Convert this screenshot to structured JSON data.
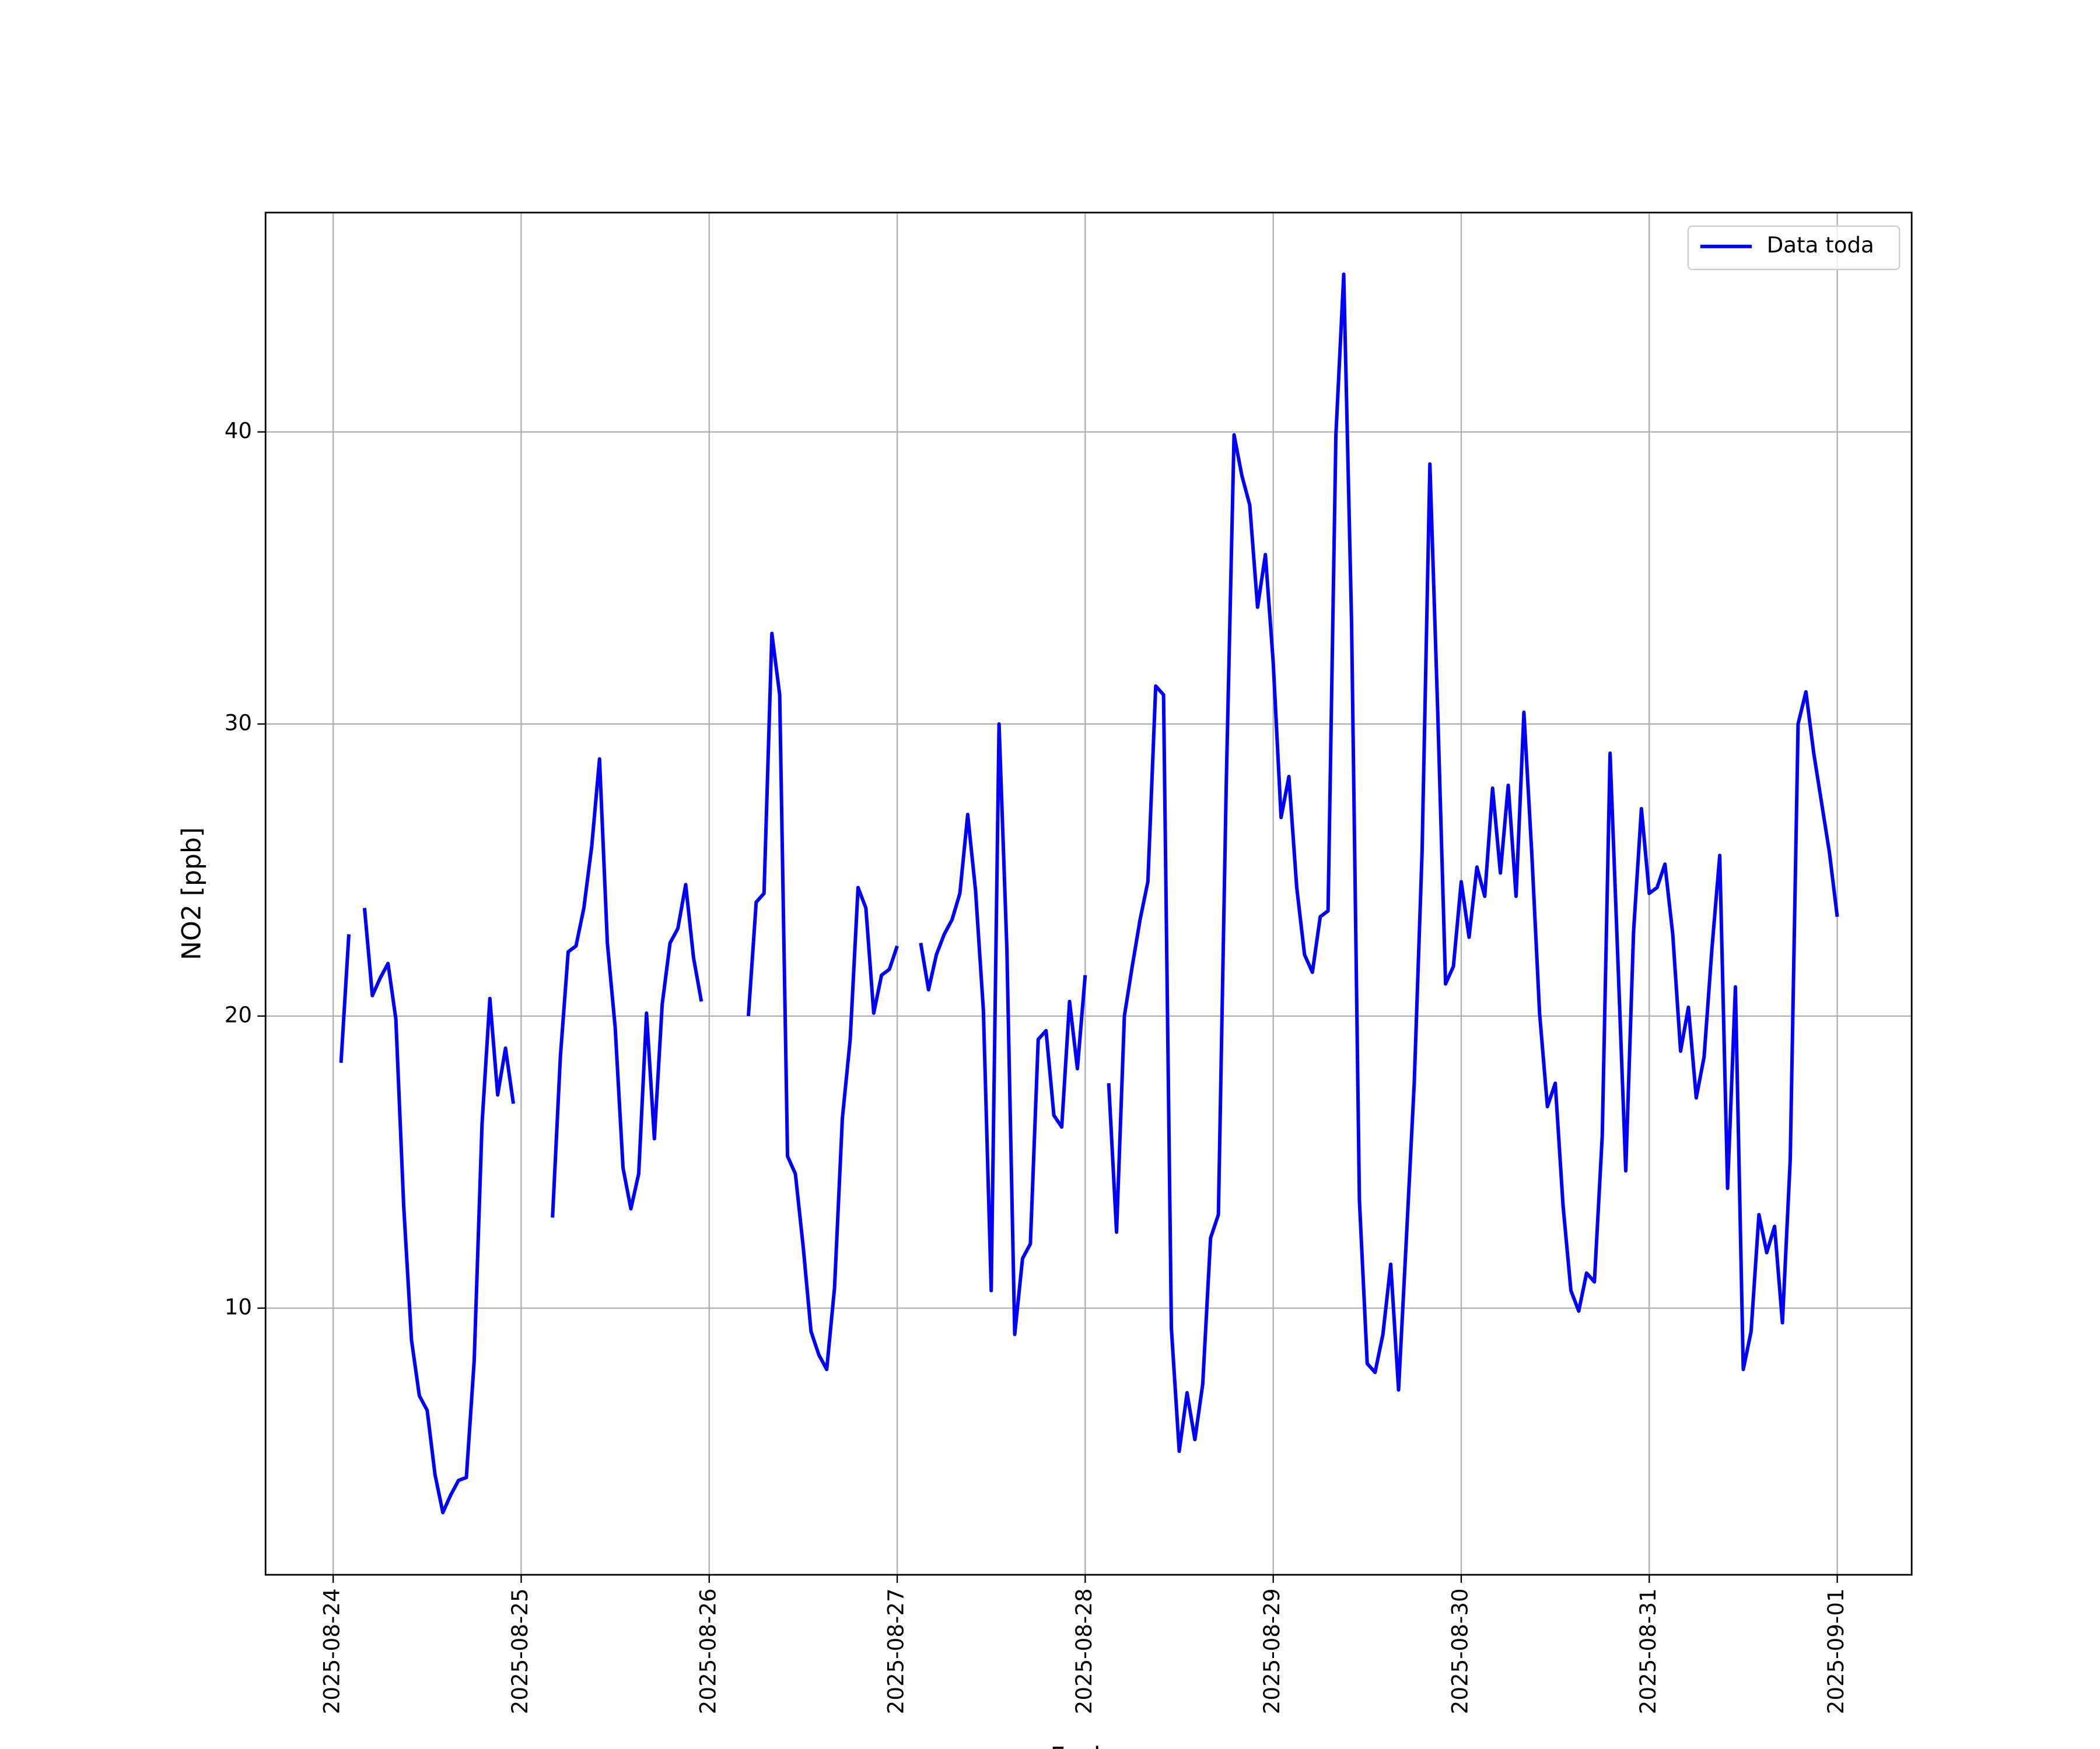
{
  "chart_data": {
    "type": "line",
    "xlabel": "Fecha",
    "ylabel": "NO2 [ppb]",
    "legend": "upper right",
    "grid": true,
    "xlim": [
      "2025-08-23 15:22",
      "2025-09-01 09:30"
    ],
    "xticks": [
      "2025-08-24",
      "2025-08-25",
      "2025-08-26",
      "2025-08-27",
      "2025-08-28",
      "2025-08-29",
      "2025-08-30",
      "2025-08-31",
      "2025-09-01"
    ],
    "ylim": [
      0.87,
      47.51
    ],
    "yticks": [
      10,
      20,
      30,
      40
    ],
    "x": [
      "2025-08-24 01:00",
      "2025-08-24 02:00",
      "2025-08-24 03:00",
      "2025-08-24 04:00",
      "2025-08-24 05:00",
      "2025-08-24 06:00",
      "2025-08-24 07:00",
      "2025-08-24 08:00",
      "2025-08-24 09:00",
      "2025-08-24 10:00",
      "2025-08-24 11:00",
      "2025-08-24 12:00",
      "2025-08-24 13:00",
      "2025-08-24 14:00",
      "2025-08-24 15:00",
      "2025-08-24 16:00",
      "2025-08-24 17:00",
      "2025-08-24 18:00",
      "2025-08-24 19:00",
      "2025-08-24 20:00",
      "2025-08-24 21:00",
      "2025-08-24 22:00",
      "2025-08-24 23:00",
      "2025-08-25 02:00",
      "2025-08-25 04:00",
      "2025-08-25 05:00",
      "2025-08-25 06:00",
      "2025-08-25 07:00",
      "2025-08-25 08:00",
      "2025-08-25 09:00",
      "2025-08-25 10:00",
      "2025-08-25 11:00",
      "2025-08-25 12:00",
      "2025-08-25 13:00",
      "2025-08-25 14:00",
      "2025-08-25 15:00",
      "2025-08-25 16:00",
      "2025-08-25 17:00",
      "2025-08-25 18:00",
      "2025-08-25 19:00",
      "2025-08-25 20:00",
      "2025-08-25 21:00",
      "2025-08-25 22:00",
      "2025-08-25 23:00",
      "2025-08-26 02:00",
      "2025-08-26 05:00",
      "2025-08-26 06:00",
      "2025-08-26 07:00",
      "2025-08-26 08:00",
      "2025-08-26 09:00",
      "2025-08-26 10:00",
      "2025-08-26 11:00",
      "2025-08-26 12:00",
      "2025-08-26 13:00",
      "2025-08-26 14:00",
      "2025-08-26 15:00",
      "2025-08-26 16:00",
      "2025-08-26 17:00",
      "2025-08-26 18:00",
      "2025-08-26 19:00",
      "2025-08-26 20:00",
      "2025-08-26 21:00",
      "2025-08-26 22:00",
      "2025-08-26 23:00",
      "2025-08-27 00:00",
      "2025-08-27 01:00",
      "2025-08-27 03:00",
      "2025-08-27 04:00",
      "2025-08-27 05:00",
      "2025-08-27 06:00",
      "2025-08-27 07:00",
      "2025-08-27 08:00",
      "2025-08-27 09:00",
      "2025-08-27 10:00",
      "2025-08-27 11:00",
      "2025-08-27 12:00",
      "2025-08-27 13:00",
      "2025-08-27 14:00",
      "2025-08-27 15:00",
      "2025-08-27 16:00",
      "2025-08-27 17:00",
      "2025-08-27 18:00",
      "2025-08-27 19:00",
      "2025-08-27 20:00",
      "2025-08-27 21:00",
      "2025-08-27 22:00",
      "2025-08-27 23:00",
      "2025-08-28 00:00",
      "2025-08-28 01:00",
      "2025-08-28 03:00",
      "2025-08-28 04:00",
      "2025-08-28 05:00",
      "2025-08-28 06:00",
      "2025-08-28 07:00",
      "2025-08-28 08:00",
      "2025-08-28 09:00",
      "2025-08-28 10:00",
      "2025-08-28 11:00",
      "2025-08-28 12:00",
      "2025-08-28 13:00",
      "2025-08-28 14:00",
      "2025-08-28 15:00",
      "2025-08-28 16:00",
      "2025-08-28 17:00",
      "2025-08-28 18:00",
      "2025-08-28 19:00",
      "2025-08-28 20:00",
      "2025-08-28 21:00",
      "2025-08-28 22:00",
      "2025-08-28 23:00",
      "2025-08-29 00:00",
      "2025-08-29 01:00",
      "2025-08-29 02:00",
      "2025-08-29 03:00",
      "2025-08-29 04:00",
      "2025-08-29 05:00",
      "2025-08-29 06:00",
      "2025-08-29 07:00",
      "2025-08-29 08:00",
      "2025-08-29 09:00",
      "2025-08-29 10:00",
      "2025-08-29 11:00",
      "2025-08-29 12:00",
      "2025-08-29 13:00",
      "2025-08-29 14:00",
      "2025-08-29 15:00",
      "2025-08-29 16:00",
      "2025-08-29 17:00",
      "2025-08-29 18:00",
      "2025-08-29 19:00",
      "2025-08-29 20:00",
      "2025-08-29 21:00",
      "2025-08-29 22:00",
      "2025-08-29 23:00",
      "2025-08-30 00:00",
      "2025-08-30 01:00",
      "2025-08-30 02:00",
      "2025-08-30 03:00",
      "2025-08-30 04:00",
      "2025-08-30 05:00",
      "2025-08-30 06:00",
      "2025-08-30 07:00",
      "2025-08-30 08:00",
      "2025-08-30 09:00",
      "2025-08-30 10:00",
      "2025-08-30 11:00",
      "2025-08-30 12:00",
      "2025-08-30 13:00",
      "2025-08-30 14:00",
      "2025-08-30 15:00",
      "2025-08-30 16:00",
      "2025-08-30 17:00",
      "2025-08-30 18:00",
      "2025-08-30 19:00",
      "2025-08-30 20:00",
      "2025-08-30 21:00",
      "2025-08-30 22:00",
      "2025-08-30 23:00",
      "2025-08-31 00:00",
      "2025-08-31 01:00",
      "2025-08-31 02:00",
      "2025-08-31 03:00",
      "2025-08-31 04:00",
      "2025-08-31 05:00",
      "2025-08-31 06:00",
      "2025-08-31 07:00",
      "2025-08-31 08:00",
      "2025-08-31 09:00",
      "2025-08-31 10:00",
      "2025-08-31 11:00",
      "2025-08-31 12:00",
      "2025-08-31 13:00",
      "2025-08-31 14:00",
      "2025-08-31 15:00",
      "2025-08-31 16:00",
      "2025-08-31 17:00",
      "2025-08-31 18:00",
      "2025-08-31 19:00",
      "2025-08-31 20:00",
      "2025-08-31 21:00",
      "2025-08-31 22:00",
      "2025-08-31 23:00",
      "2025-09-01 00:00"
    ],
    "series": [
      {
        "name": "Data toda",
        "color": "#0000ff",
        "values": [
          18.4,
          22.8,
          null,
          23.7,
          20.7,
          21.3,
          21.8,
          19.9,
          13.5,
          8.9,
          7.0,
          6.5,
          4.3,
          3.0,
          3.6,
          4.1,
          4.2,
          8.2,
          16.3,
          20.6,
          17.3,
          18.9,
          17.0,
          null,
          13.1,
          18.6,
          22.2,
          22.4,
          23.7,
          25.8,
          28.8,
          22.5,
          19.6,
          14.8,
          13.4,
          14.6,
          20.1,
          15.8,
          20.4,
          22.5,
          23.0,
          24.5,
          22.0,
          20.5,
          null,
          20.0,
          23.9,
          24.2,
          33.1,
          31.0,
          15.2,
          14.6,
          12.1,
          9.2,
          8.4,
          7.9,
          10.7,
          16.5,
          19.2,
          24.4,
          23.7,
          20.1,
          21.4,
          21.6,
          22.4,
          null,
          22.5,
          20.9,
          22.1,
          22.8,
          23.3,
          24.2,
          26.9,
          24.3,
          20.2,
          10.6,
          30.0,
          22.3,
          9.1,
          11.7,
          12.2,
          19.2,
          19.5,
          16.6,
          16.2,
          20.5,
          18.2,
          21.4,
          null,
          17.7,
          12.6,
          20.0,
          21.7,
          23.3,
          24.6,
          31.3,
          31.0,
          9.3,
          5.1,
          7.1,
          5.5,
          7.4,
          12.4,
          13.2,
          27.9,
          39.9,
          38.5,
          37.5,
          34.0,
          35.8,
          32.1,
          26.8,
          28.2,
          24.4,
          22.1,
          21.5,
          23.4,
          23.6,
          39.9,
          45.4,
          33.5,
          13.7,
          8.1,
          7.8,
          9.1,
          11.5,
          7.2,
          12.4,
          17.7,
          25.6,
          38.9,
          30.4,
          21.1,
          21.7,
          24.6,
          22.7,
          25.1,
          24.1,
          27.8,
          24.9,
          27.9,
          24.1,
          30.4,
          25.6,
          20.1,
          16.9,
          17.7,
          13.5,
          10.6,
          9.9,
          11.2,
          10.9,
          15.9,
          29.0,
          21.9,
          14.7,
          22.9,
          27.1,
          24.2,
          24.4,
          25.2,
          22.8,
          18.8,
          20.3,
          17.2,
          18.6,
          22.3,
          25.5,
          14.1,
          21.0,
          7.9,
          9.2,
          13.2,
          11.9,
          12.8,
          9.5,
          15.1,
          30.0,
          31.1,
          29.0,
          27.3,
          25.6,
          23.4
        ]
      }
    ]
  }
}
